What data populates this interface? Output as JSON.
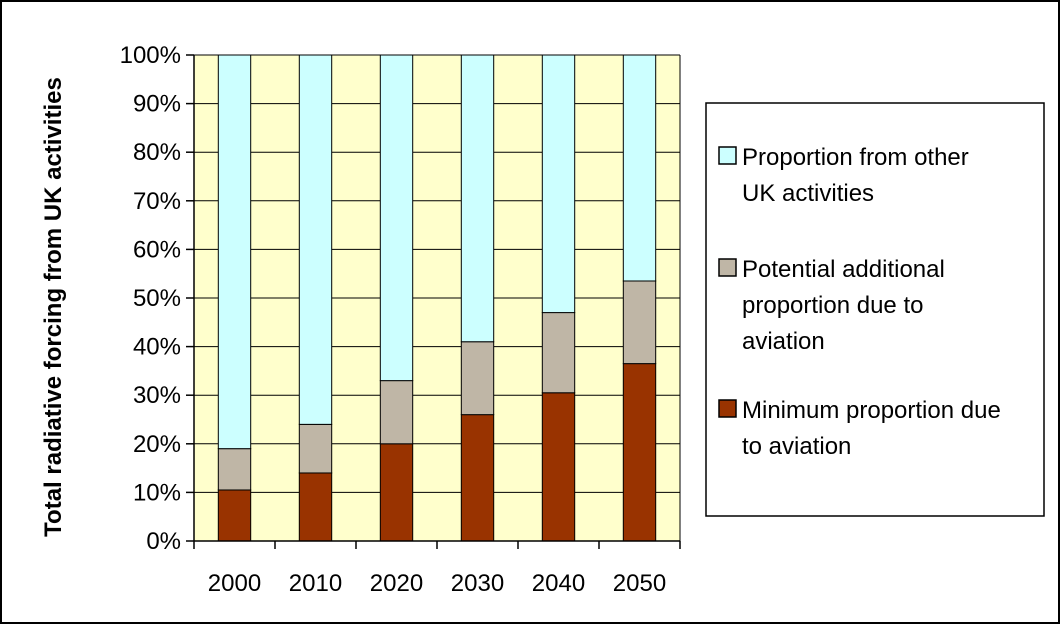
{
  "chart_data": {
    "type": "bar",
    "stacked": true,
    "percent_axis": true,
    "categories": [
      "2000",
      "2010",
      "2020",
      "2030",
      "2040",
      "2050"
    ],
    "ylabel": "Total radiative forcing from UK activities",
    "xlabel": "",
    "ylim": [
      0,
      100
    ],
    "yticks": [
      "0%",
      "10%",
      "20%",
      "30%",
      "40%",
      "50%",
      "60%",
      "70%",
      "80%",
      "90%",
      "100%"
    ],
    "grid": true,
    "legend_position": "right",
    "series": [
      {
        "name": "Minimum proportion due to aviation",
        "values": [
          10.5,
          14,
          20,
          26,
          30.5,
          36.5
        ],
        "color": "#993300"
      },
      {
        "name": "Potential additional proportion due to aviation",
        "values": [
          8.5,
          10,
          13,
          15,
          16.5,
          17
        ],
        "color": "#BFB6A6"
      },
      {
        "name": "Proportion from other UK activities",
        "values": [
          81,
          76,
          67,
          59,
          53,
          46.5
        ],
        "color": "#CCFFFF"
      }
    ],
    "legend_order": [
      2,
      1,
      0
    ],
    "plot_background": "#FFFFCC"
  }
}
